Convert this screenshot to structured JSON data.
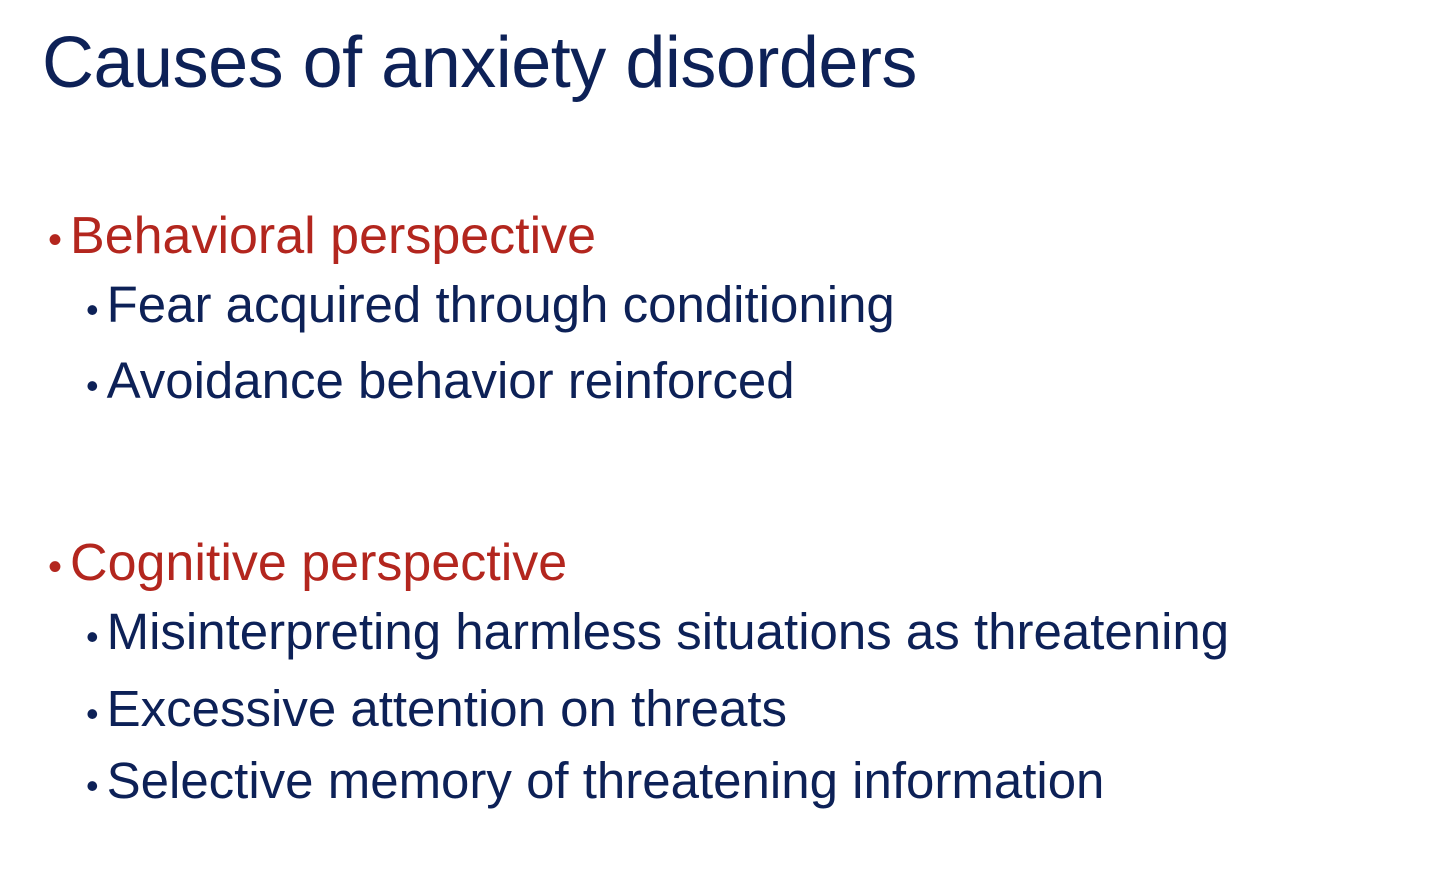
{
  "slide": {
    "title": "Causes of anxiety disorders",
    "sections": [
      {
        "heading": "Behavioral perspective",
        "items": [
          "Fear acquired through conditioning",
          "Avoidance behavior reinforced"
        ]
      },
      {
        "heading": "Cognitive perspective",
        "items": [
          "Misinterpreting harmless situations as threatening",
          "Excessive attention on threats",
          "Selective memory of threatening information"
        ]
      }
    ],
    "bullet_glyph": "•"
  },
  "colors": {
    "title": "#0d2157",
    "heading": "#b3261e",
    "body": "#0d2157",
    "background": "#ffffff"
  }
}
